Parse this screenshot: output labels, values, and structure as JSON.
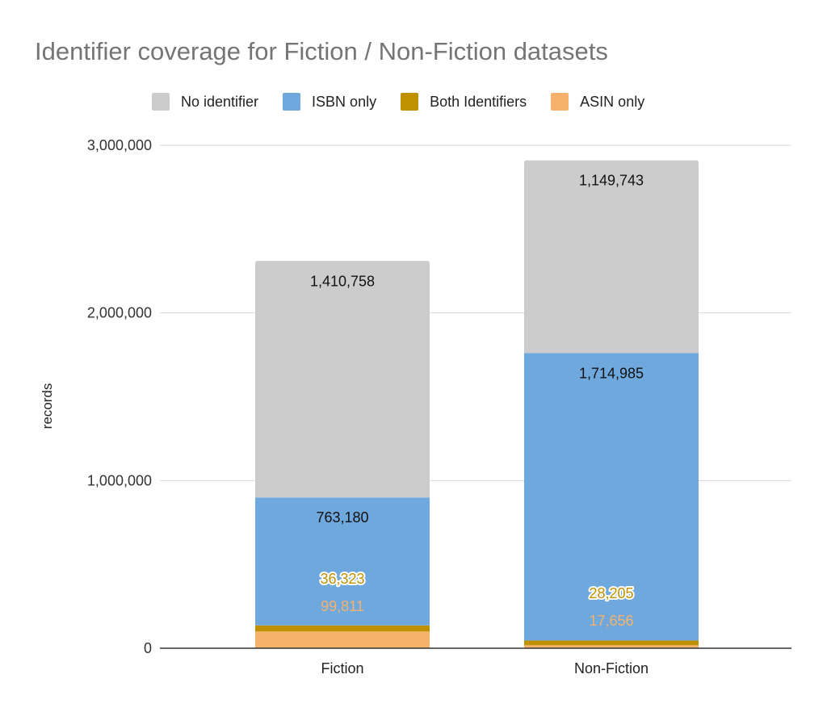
{
  "chart_data": {
    "type": "bar",
    "stacked": true,
    "title": "Identifier coverage for Fiction / Non-Fiction datasets",
    "xlabel": "",
    "ylabel": "records",
    "ylim": [
      0,
      3000000
    ],
    "yticks": [
      0,
      1000000,
      2000000,
      3000000
    ],
    "ytick_labels": [
      "0",
      "1,000,000",
      "2,000,000",
      "3,000,000"
    ],
    "categories": [
      "Fiction",
      "Non-Fiction"
    ],
    "legend_position": "top",
    "legend_order": [
      "No identifier",
      "ISBN only",
      "Both Identifiers",
      "ASIN only"
    ],
    "series": [
      {
        "name": "ASIN only",
        "color": "#f6b26b",
        "label_color": "#f6b26b",
        "values": [
          99811,
          17656
        ],
        "labels": [
          "99,811",
          "17,656"
        ]
      },
      {
        "name": "Both Identifiers",
        "color": "#bf9000",
        "label_color": "#bf9000",
        "label_halo": true,
        "values": [
          36323,
          28205
        ],
        "labels": [
          "36,323",
          "28,205"
        ]
      },
      {
        "name": "ISBN only",
        "color": "#6fa8dc",
        "label_color": "#111111",
        "values": [
          763180,
          1714985
        ],
        "labels": [
          "763,180",
          "1,714,985"
        ]
      },
      {
        "name": "No identifier",
        "color": "#cccccc",
        "label_color": "#111111",
        "values": [
          1410758,
          1149743
        ],
        "labels": [
          "1,410,758",
          "1,149,743"
        ]
      }
    ]
  }
}
